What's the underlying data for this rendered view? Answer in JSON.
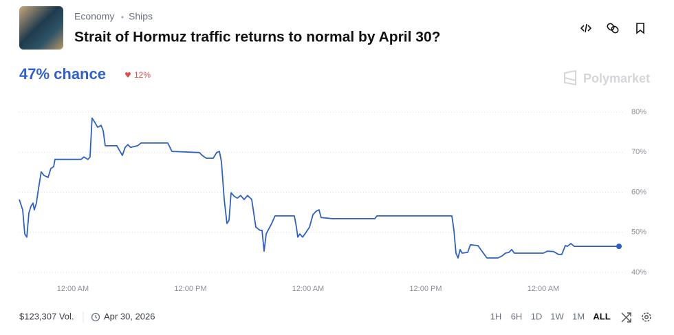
{
  "header": {
    "categories": [
      "Economy",
      "Ships"
    ],
    "title": "Strait of Hormuz traffic returns to normal by April 30?"
  },
  "chance": {
    "text": "47% chance",
    "change": "12%"
  },
  "brand": "Polymarket",
  "chart_data": {
    "type": "line",
    "color": "#2d5fc8",
    "grid": true,
    "x": [
      -5.47,
      -5.12,
      -4.91,
      -4.7,
      -4.49,
      -4.28,
      -4.07,
      -3.93,
      -3.72,
      -3.51,
      -3.23,
      -2.95,
      -2.53,
      -2.25,
      -1.96,
      -1.82,
      0.84,
      1.12,
      1.54,
      1.75,
      1.96,
      2.25,
      2.53,
      2.88,
      3.09,
      3.3,
      4.49,
      5.05,
      5.33,
      5.61,
      5.89,
      6.6,
      6.95,
      9.68,
      10.11,
      12.91,
      13.19,
      13.61,
      14.32,
      14.67,
      14.95,
      15.16,
      15.44,
      15.72,
      15.93,
      16.14,
      16.42,
      16.77,
      17.12,
      17.47,
      17.82,
      18.25,
      18.67,
      19.09,
      19.3,
      19.51,
      19.72,
      20.28,
      20.63,
      22.6,
      22.81,
      22.95,
      23.16,
      23.44,
      23.79,
      24.14,
      24.49,
      24.84,
      25.12,
      25.33,
      26.46,
      30.81,
      31.02,
      38.67,
      38.88,
      39.09,
      39.3,
      39.51,
      39.72,
      40.28,
      40.56,
      41.33,
      41.68,
      42.25,
      43.37,
      43.79,
      44.14,
      44.49,
      44.77,
      45.05,
      48.0,
      48.42,
      49.05,
      49.54,
      49.89,
      50.25,
      50.46,
      50.81,
      51.16,
      55.72
    ],
    "values": [
      58.2,
      55.6,
      49.6,
      48.8,
      54.8,
      56.5,
      57.3,
      55.6,
      57.3,
      60.8,
      65.1,
      64.2,
      63.7,
      65.9,
      66.4,
      68.2,
      68.2,
      68.8,
      68.2,
      68.8,
      78.5,
      77.4,
      76.2,
      76.7,
      75.4,
      71.6,
      71.6,
      69.2,
      71.2,
      71.9,
      71.2,
      71.6,
      72.3,
      72.3,
      70.2,
      69.9,
      69.2,
      68.5,
      68.5,
      69.9,
      70.2,
      67.6,
      58.2,
      52.2,
      53.0,
      59.9,
      59.1,
      58.5,
      59.2,
      58.2,
      59.2,
      58.2,
      51.3,
      50.5,
      50.5,
      45.3,
      49.6,
      52.2,
      54.1,
      54.1,
      51.3,
      48.8,
      49.6,
      48.8,
      50.0,
      51.3,
      54.4,
      55.3,
      55.6,
      53.7,
      53.4,
      53.4,
      54.1,
      54.1,
      50.5,
      44.8,
      43.6,
      45.7,
      44.8,
      45.0,
      46.9,
      46.7,
      45.5,
      43.6,
      43.6,
      44.1,
      44.8,
      45.0,
      45.7,
      44.8,
      44.8,
      45.3,
      45.2,
      44.5,
      44.5,
      46.7,
      46.5,
      47.2,
      46.5,
      46.5
    ],
    "xlim": [
      -5.47,
      55.72
    ],
    "xticks": [
      {
        "value": 0,
        "label": "12:00 AM"
      },
      {
        "value": 12,
        "label": "12:00 PM"
      },
      {
        "value": 24,
        "label": "12:00 AM"
      },
      {
        "value": 36,
        "label": "12:00 PM"
      },
      {
        "value": 48,
        "label": "12:00 AM"
      }
    ],
    "ylim": [
      40,
      80
    ],
    "yticks": [
      {
        "value": 40,
        "label": "40%"
      },
      {
        "value": 50,
        "label": "50%"
      },
      {
        "value": 60,
        "label": "60%"
      },
      {
        "value": 70,
        "label": "70%"
      },
      {
        "value": 80,
        "label": "80%"
      }
    ]
  },
  "footer": {
    "volume": "$123,307 Vol.",
    "end_date": "Apr 30, 2026",
    "ranges": [
      "1H",
      "6H",
      "1D",
      "1W",
      "1M",
      "ALL"
    ],
    "selected_range": 5
  }
}
